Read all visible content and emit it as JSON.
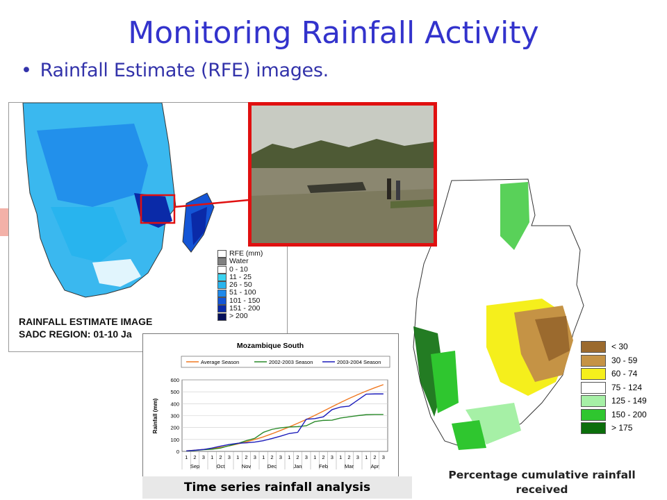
{
  "slide": {
    "title": "Monitoring Rainfall Activity",
    "bullet": "Rainfall Estimate (RFE) images."
  },
  "rfe_map": {
    "caption_line1": "RAINFALL ESTIMATE IMAGE",
    "caption_line2": "SADC REGION: 01-10 Ja",
    "legend_title": "RFE (mm)",
    "legend": [
      {
        "label": "Water",
        "color": "#808080"
      },
      {
        "label": "0 - 10",
        "color": "#ffffff"
      },
      {
        "label": "11 - 25",
        "color": "#3ad3f0"
      },
      {
        "label": "26 - 50",
        "color": "#28b4ee"
      },
      {
        "label": "51 - 100",
        "color": "#1e88ea"
      },
      {
        "label": "101 - 150",
        "color": "#1455d6"
      },
      {
        "label": "151 - 200",
        "color": "#0a2aa8"
      },
      {
        "label": "> 200",
        "color": "#05105a"
      }
    ]
  },
  "pct_map": {
    "caption": "Percentage cumulative rainfall received",
    "legend": [
      {
        "label": "< 30",
        "color": "#9b6a2e"
      },
      {
        "label": "30 - 59",
        "color": "#c59345"
      },
      {
        "label": "60 - 74",
        "color": "#f5ef1c"
      },
      {
        "label": "75 - 124",
        "color": "#ffffff"
      },
      {
        "label": "125 - 149",
        "color": "#a6f0a6"
      },
      {
        "label": "150 - 200",
        "color": "#2fc62f"
      },
      {
        "label": "> 175",
        "color": "#0b6e0b"
      }
    ]
  },
  "chart_caption": "Time series rainfall analysis",
  "chart_data": {
    "type": "line",
    "title": "Mozambique South",
    "ylabel": "Rainfall (mm)",
    "xlabel": "",
    "ylim": [
      0,
      600
    ],
    "yticks": [
      0,
      100,
      200,
      300,
      400,
      500,
      600
    ],
    "dekads": [
      "1",
      "2",
      "3",
      "1",
      "2",
      "3",
      "1",
      "2",
      "3",
      "1",
      "2",
      "3",
      "1",
      "2",
      "3",
      "1",
      "2",
      "3",
      "1",
      "2",
      "3",
      "1",
      "2",
      "3"
    ],
    "months": [
      "Sep",
      "Oct",
      "Nov",
      "Dec",
      "Jan",
      "Feb",
      "Mar",
      "Apr"
    ],
    "series": [
      {
        "name": "Average Season",
        "color": "#f07820",
        "values": [
          5,
          10,
          16,
          24,
          34,
          46,
          62,
          80,
          100,
          122,
          148,
          176,
          205,
          236,
          268,
          302,
          338,
          374,
          410,
          444,
          476,
          506,
          534,
          560
        ]
      },
      {
        "name": "2002-2003 Season",
        "color": "#2a8a2a",
        "values": [
          3,
          8,
          14,
          18,
          28,
          48,
          66,
          90,
          110,
          160,
          185,
          198,
          205,
          208,
          215,
          250,
          260,
          262,
          280,
          290,
          300,
          308,
          310,
          310
        ]
      },
      {
        "name": "2003-2004 Season",
        "color": "#1a1aba",
        "values": [
          4,
          10,
          16,
          28,
          44,
          58,
          68,
          72,
          78,
          90,
          108,
          128,
          150,
          160,
          270,
          275,
          290,
          350,
          372,
          380,
          430,
          480,
          482,
          482
        ]
      }
    ]
  }
}
